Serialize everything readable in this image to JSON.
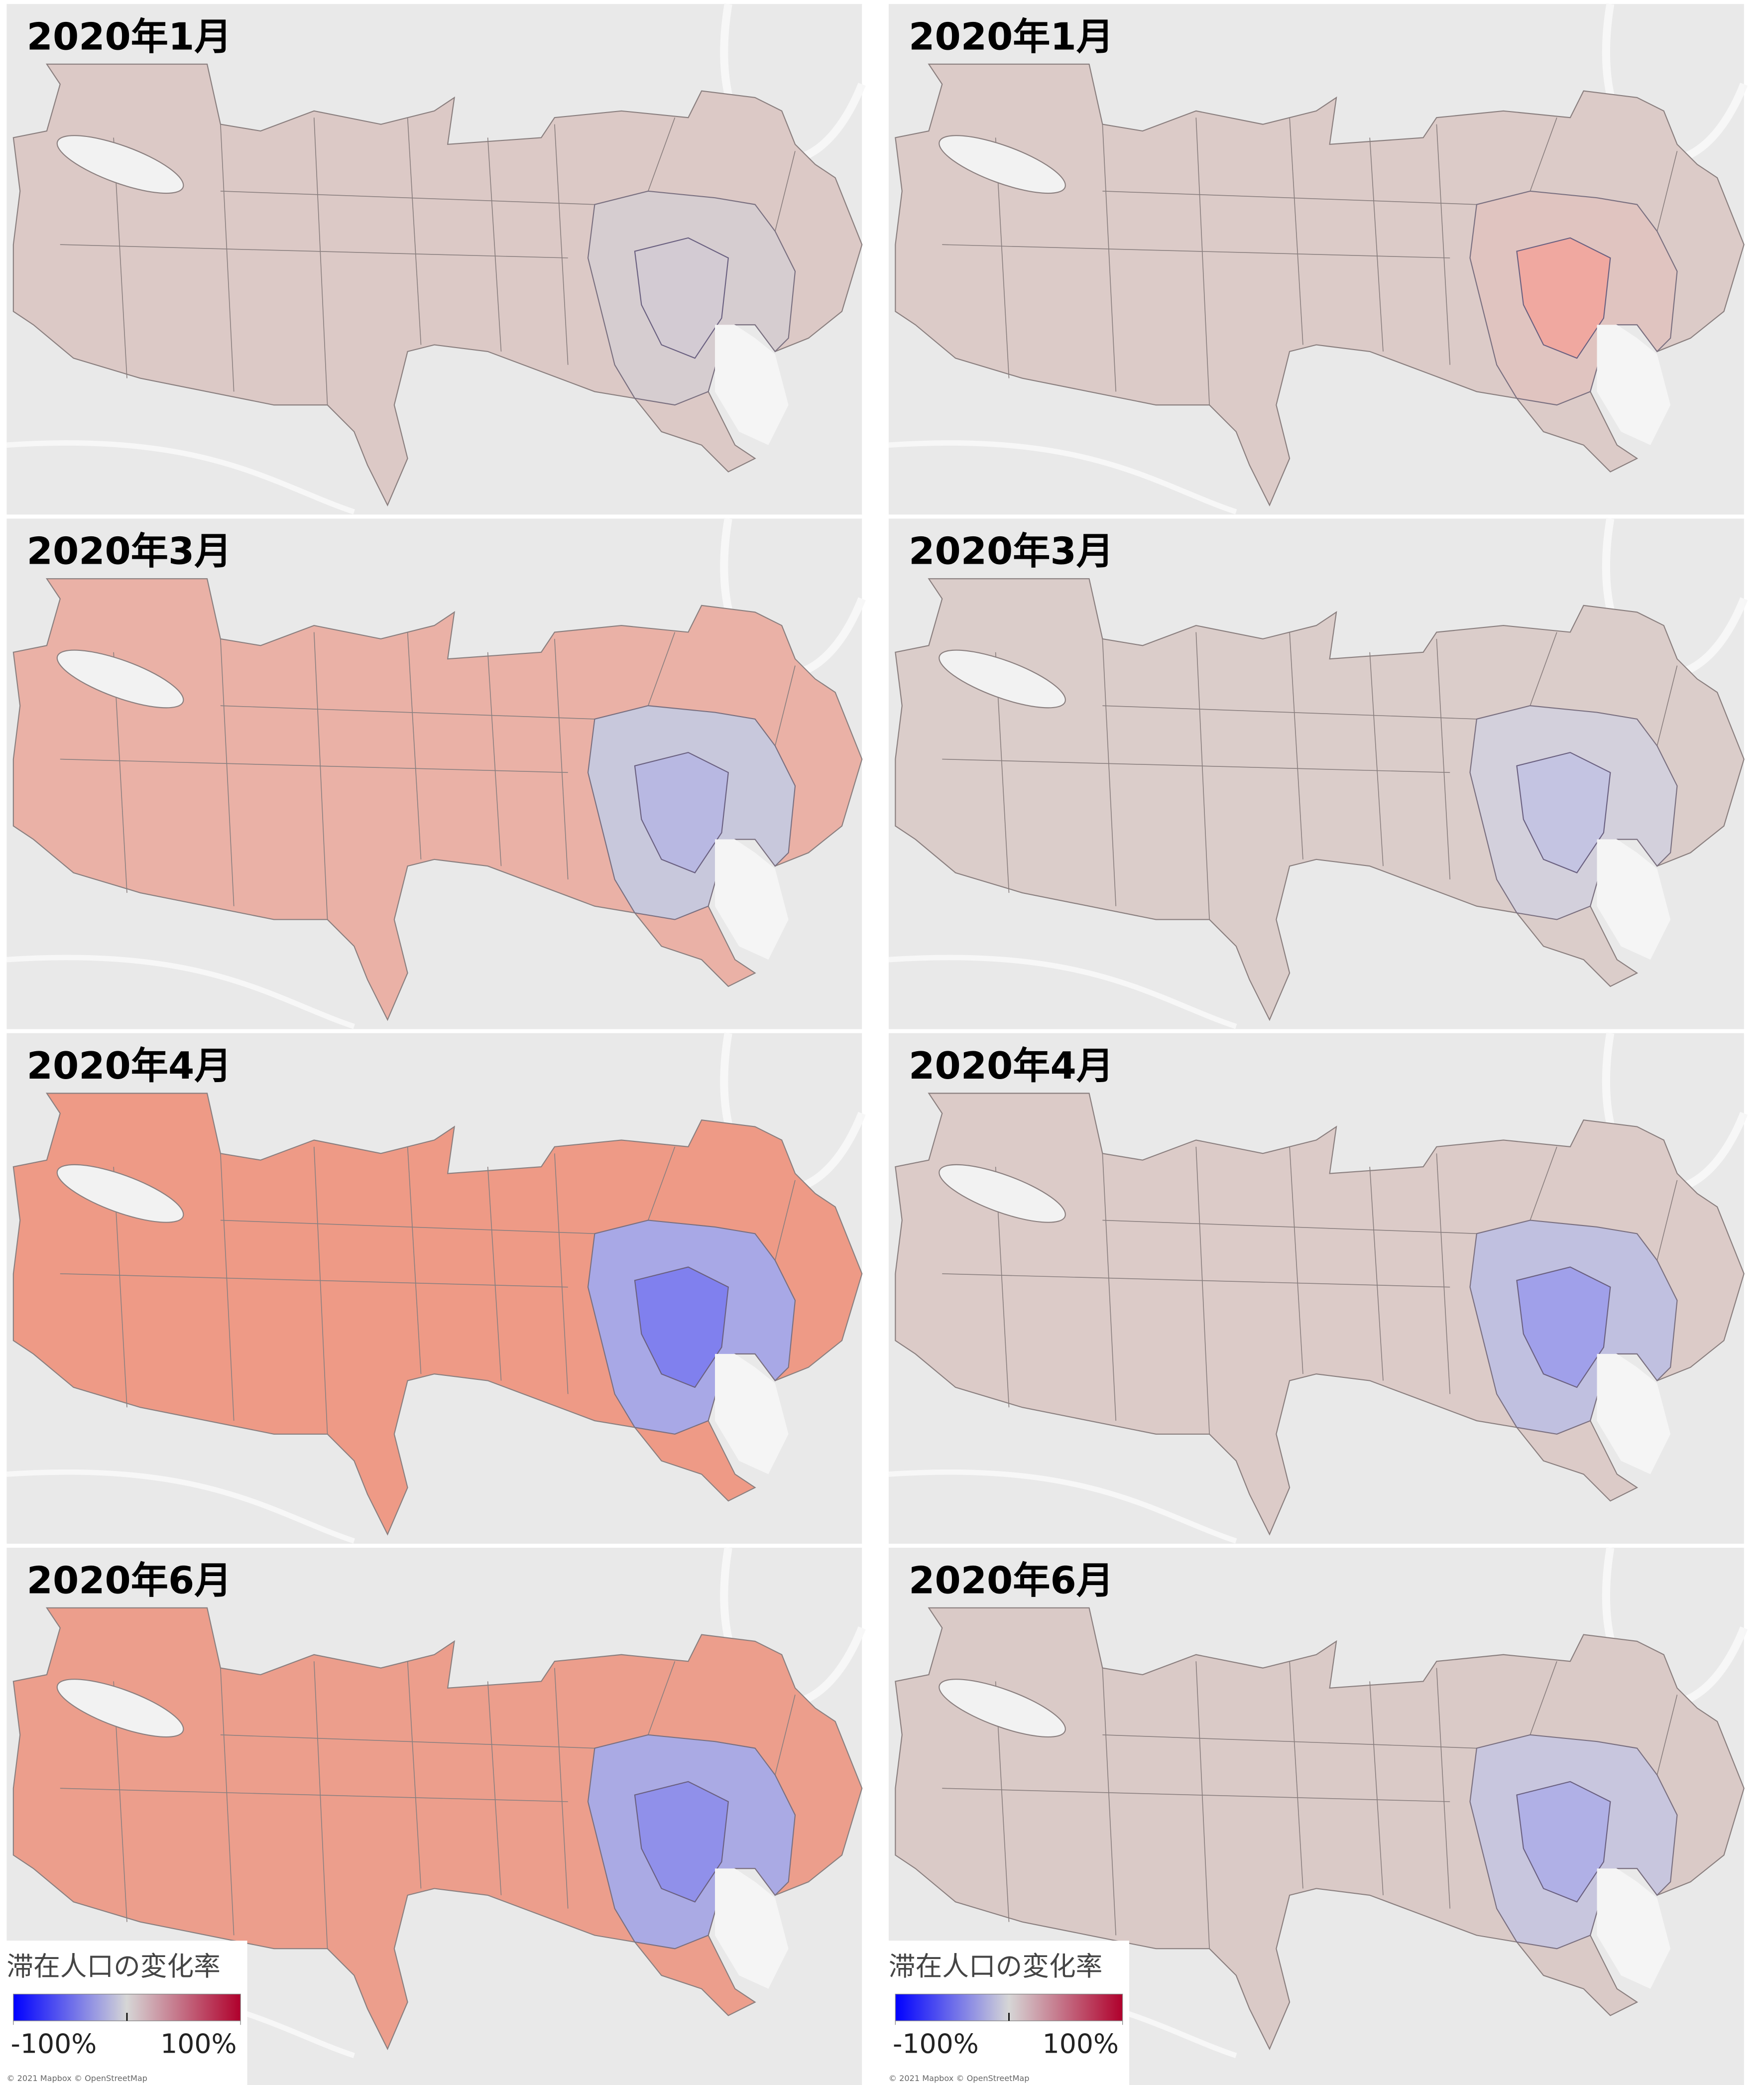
{
  "columns": [
    {
      "panels": [
        {
          "title": "2020年1月"
        },
        {
          "title": "2020年3月"
        },
        {
          "title": "2020年4月"
        },
        {
          "title": "2020年6月"
        }
      ],
      "legend": {
        "title": "滞在人口の変化率",
        "range": [
          -100,
          100
        ],
        "ticks": [
          {
            "value": -100,
            "label": "-100%"
          },
          {
            "value": 100,
            "label": "100%"
          }
        ],
        "colors": [
          "#0000ff",
          "#d6d6d6",
          "#b0002c"
        ]
      },
      "attribution": "© 2021 Mapbox © OpenStreetMap"
    },
    {
      "panels": [
        {
          "title": "2020年1月"
        },
        {
          "title": "2020年3月"
        },
        {
          "title": "2020年4月"
        },
        {
          "title": "2020年6月"
        }
      ],
      "legend": {
        "title": "滞在人口の変化率",
        "range": [
          -100,
          100
        ],
        "ticks": [
          {
            "value": -100,
            "label": "-100%"
          },
          {
            "value": 100,
            "label": "100%"
          }
        ],
        "colors": [
          "#0000ff",
          "#d6d6d6",
          "#b0002c"
        ]
      },
      "attribution": "© 2021 Mapbox © OpenStreetMap"
    }
  ]
}
